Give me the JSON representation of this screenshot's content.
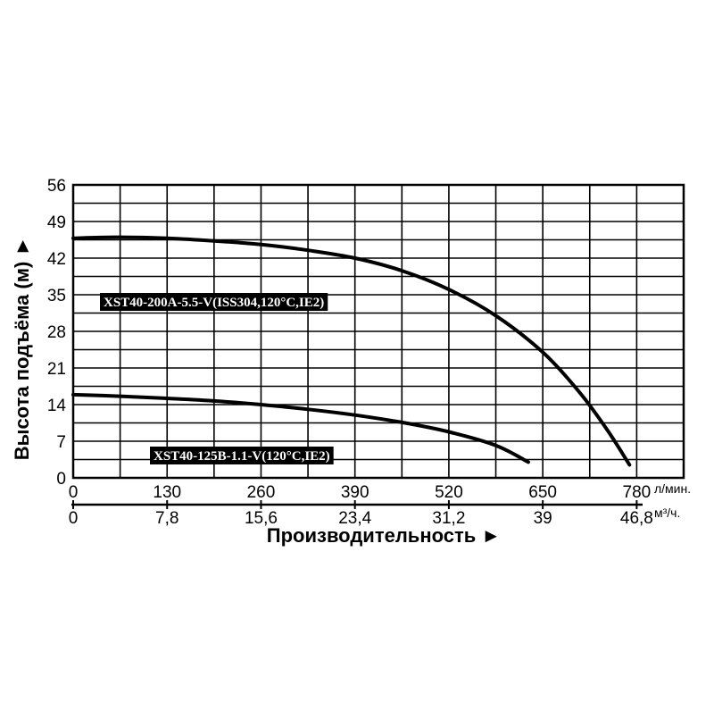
{
  "chart_data": {
    "type": "line",
    "xlabel": "Производительность ►",
    "ylabel": "Высота подъёма (м) ►",
    "x_unit_primary": "л/мин.",
    "x_unit_secondary": "м³/ч.",
    "xlim": [
      0,
      845
    ],
    "ylim": [
      0,
      56
    ],
    "grid": true,
    "x_ticks_primary": [
      "0",
      "130",
      "260",
      "390",
      "520",
      "650",
      "780"
    ],
    "x_ticks_primary_values": [
      0,
      130,
      260,
      390,
      520,
      650,
      780
    ],
    "x_ticks_secondary": [
      "0",
      "7,8",
      "15,6",
      "23,4",
      "31,2",
      "39",
      "46,8"
    ],
    "y_ticks": [
      "0",
      "7",
      "14",
      "21",
      "28",
      "35",
      "42",
      "49",
      "56"
    ],
    "y_ticks_values": [
      0,
      7,
      14,
      21,
      28,
      35,
      42,
      49,
      56
    ],
    "series": [
      {
        "name": "XST40-200A-5.5-V(ISS304,120°C,IE2)",
        "color": "#000000",
        "x": [
          0,
          65,
          130,
          195,
          260,
          325,
          390,
          455,
          520,
          585,
          650,
          700,
          740,
          770
        ],
        "y": [
          45.8,
          46.0,
          45.8,
          45.3,
          44.6,
          43.5,
          42.0,
          39.6,
          36.0,
          31.0,
          24.0,
          16.5,
          9.0,
          2.5
        ]
      },
      {
        "name": "XST40-125B-1.1-V(120°C,IE2)",
        "color": "#000000",
        "x": [
          0,
          65,
          130,
          195,
          260,
          325,
          390,
          455,
          520,
          585,
          630
        ],
        "y": [
          15.9,
          15.6,
          15.2,
          14.7,
          14.0,
          13.1,
          12.0,
          10.6,
          8.8,
          6.2,
          3.0
        ]
      }
    ]
  }
}
